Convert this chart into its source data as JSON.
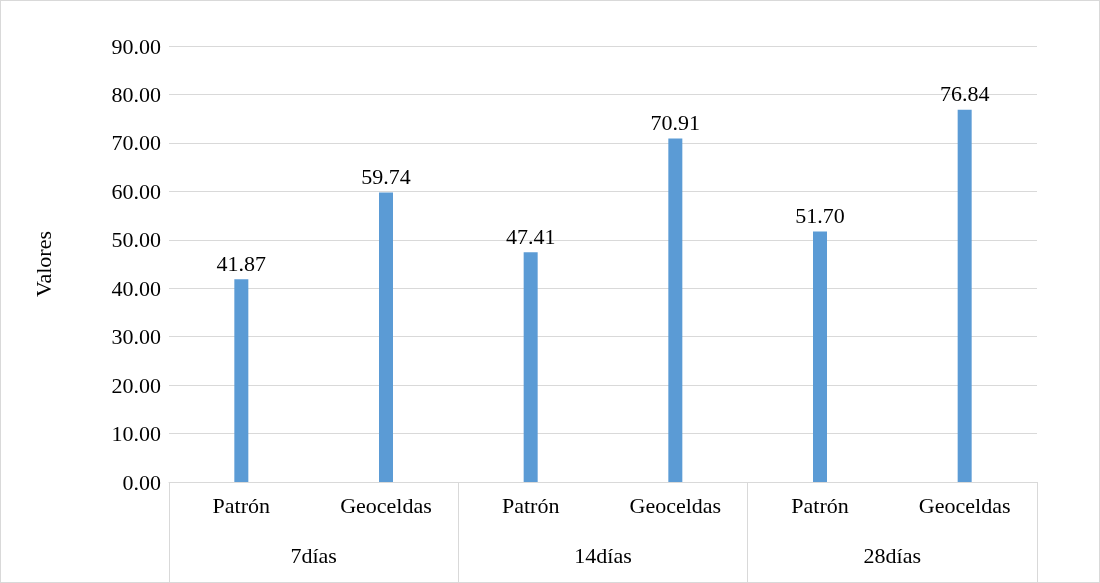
{
  "chart_data": {
    "type": "bar",
    "ylabel": "Valores",
    "categories": [
      "Patrón",
      "Geoceldas",
      "Patrón",
      "Geoceldas",
      "Patrón",
      "Geoceldas"
    ],
    "values": [
      41.87,
      59.74,
      47.41,
      70.91,
      51.7,
      76.84
    ],
    "value_labels": [
      "41.87",
      "59.74",
      "47.41",
      "70.91",
      "51.70",
      "76.84"
    ],
    "color": "#5b9bd5",
    "ylim": [
      0,
      90
    ],
    "yticks": [
      {
        "value": 0,
        "label": "0.00"
      },
      {
        "value": 10,
        "label": "10.00"
      },
      {
        "value": 20,
        "label": "20.00"
      },
      {
        "value": 30,
        "label": "30.00"
      },
      {
        "value": 40,
        "label": "40.00"
      },
      {
        "value": 50,
        "label": "50.00"
      },
      {
        "value": 60,
        "label": "60.00"
      },
      {
        "value": 70,
        "label": "70.00"
      },
      {
        "value": 80,
        "label": "80.00"
      },
      {
        "value": 90,
        "label": "90.00"
      }
    ],
    "annotations": [
      "7días",
      "14días",
      "28días"
    ],
    "grid": "y"
  }
}
